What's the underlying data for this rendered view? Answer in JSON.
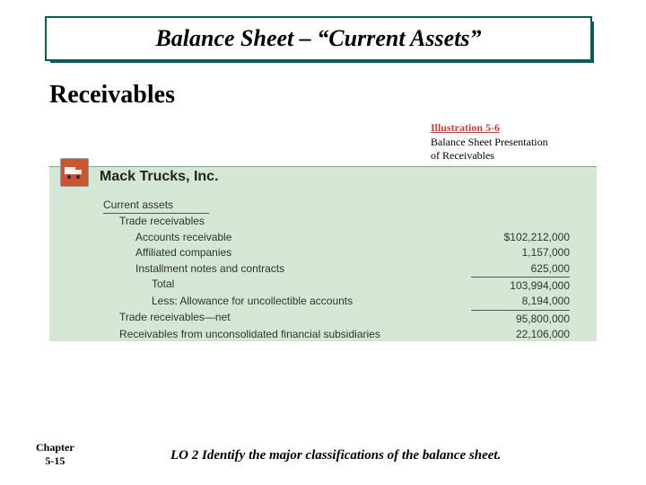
{
  "title": "Balance Sheet – “Current Assets”",
  "subtitle": "Receivables",
  "illustration": {
    "num": "Illustration 5-6",
    "desc1": "Balance Sheet Presentation",
    "desc2": "of Receivables"
  },
  "panel": {
    "icon_name": "truck-icon",
    "company": "Mack Trucks, Inc.",
    "heading": "Current assets",
    "rows": [
      {
        "label": "Trade receivables",
        "amount": "",
        "level": 1
      },
      {
        "label": "Accounts receivable",
        "amount": "$102,212,000",
        "level": 2
      },
      {
        "label": "Affiliated companies",
        "amount": "1,157,000",
        "level": 2
      },
      {
        "label": "Installment notes and contracts",
        "amount": "625,000",
        "level": 2,
        "rule_after": true
      },
      {
        "label": "Total",
        "amount": "103,994,000",
        "level": 3
      },
      {
        "label": "Less: Allowance for uncollectible accounts",
        "amount": "8,194,000",
        "level": 3,
        "rule_after": true
      },
      {
        "label": "Trade receivables—net",
        "amount": "95,800,000",
        "level": 1
      },
      {
        "label": "Receivables from unconsolidated financial subsidiaries",
        "amount": "22,106,000",
        "level": 1
      }
    ]
  },
  "chapter": {
    "line1": "Chapter",
    "line2": "5-15"
  },
  "lo": "LO 2  Identify the major classifications of the balance sheet.",
  "colors": {
    "banner_border": "#0a5a5a",
    "panel_bg": "#d4e6d4",
    "illus_red": "#c04040"
  }
}
